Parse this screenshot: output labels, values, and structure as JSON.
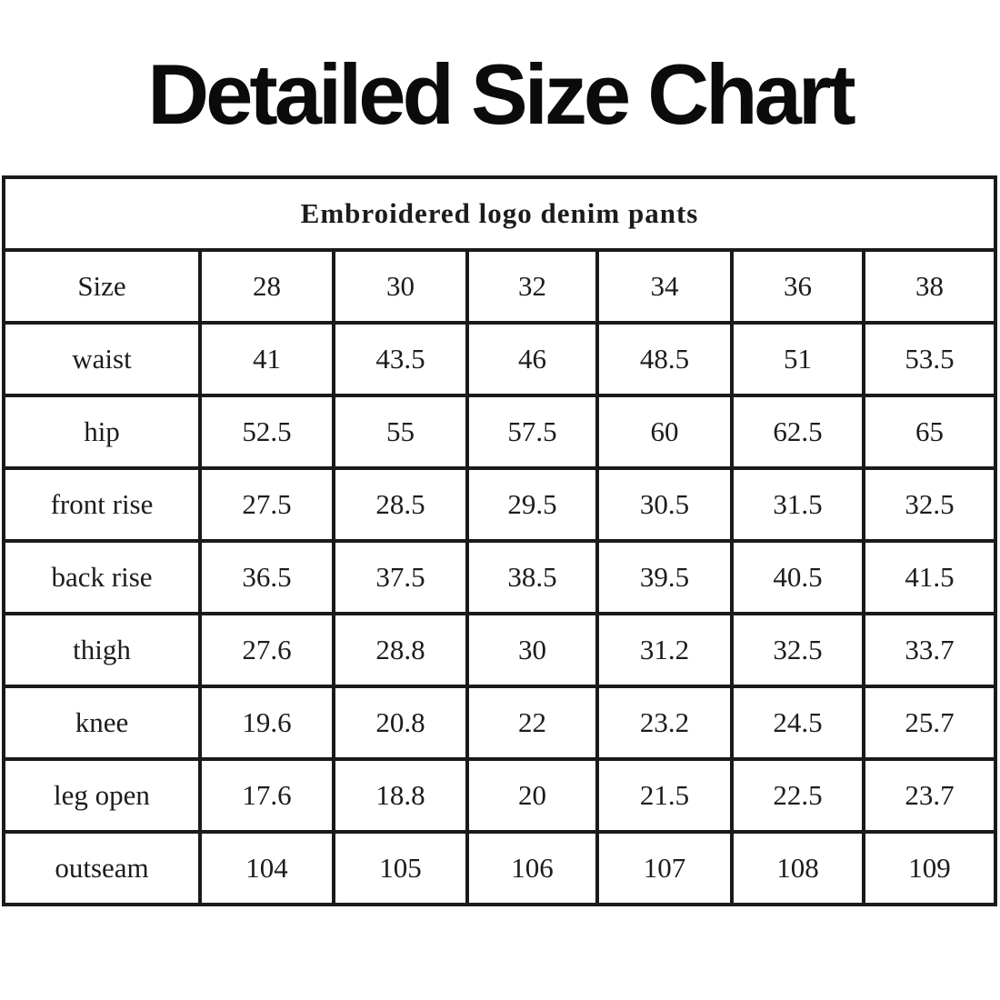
{
  "page": {
    "title": "Detailed Size Chart",
    "subtitle": "Embroidered logo denim pants"
  },
  "size_table": {
    "header": [
      "Size",
      "28",
      "30",
      "32",
      "34",
      "36",
      "38"
    ],
    "rows": [
      {
        "label": "waist",
        "values": [
          "41",
          "43.5",
          "46",
          "48.5",
          "51",
          "53.5"
        ]
      },
      {
        "label": "hip",
        "values": [
          "52.5",
          "55",
          "57.5",
          "60",
          "62.5",
          "65"
        ]
      },
      {
        "label": "front rise",
        "values": [
          "27.5",
          "28.5",
          "29.5",
          "30.5",
          "31.5",
          "32.5"
        ]
      },
      {
        "label": "back rise",
        "values": [
          "36.5",
          "37.5",
          "38.5",
          "39.5",
          "40.5",
          "41.5"
        ]
      },
      {
        "label": "thigh",
        "values": [
          "27.6",
          "28.8",
          "30",
          "31.2",
          "32.5",
          "33.7"
        ]
      },
      {
        "label": "knee",
        "values": [
          "19.6",
          "20.8",
          "22",
          "23.2",
          "24.5",
          "25.7"
        ]
      },
      {
        "label": "leg open",
        "values": [
          "17.6",
          "18.8",
          "20",
          "21.5",
          "22.5",
          "23.7"
        ]
      },
      {
        "label": "outseam",
        "values": [
          "104",
          "105",
          "106",
          "107",
          "108",
          "109"
        ]
      }
    ]
  },
  "colors": {
    "text": "#131313",
    "border": "#1a1a1a",
    "background": "#ffffff"
  }
}
